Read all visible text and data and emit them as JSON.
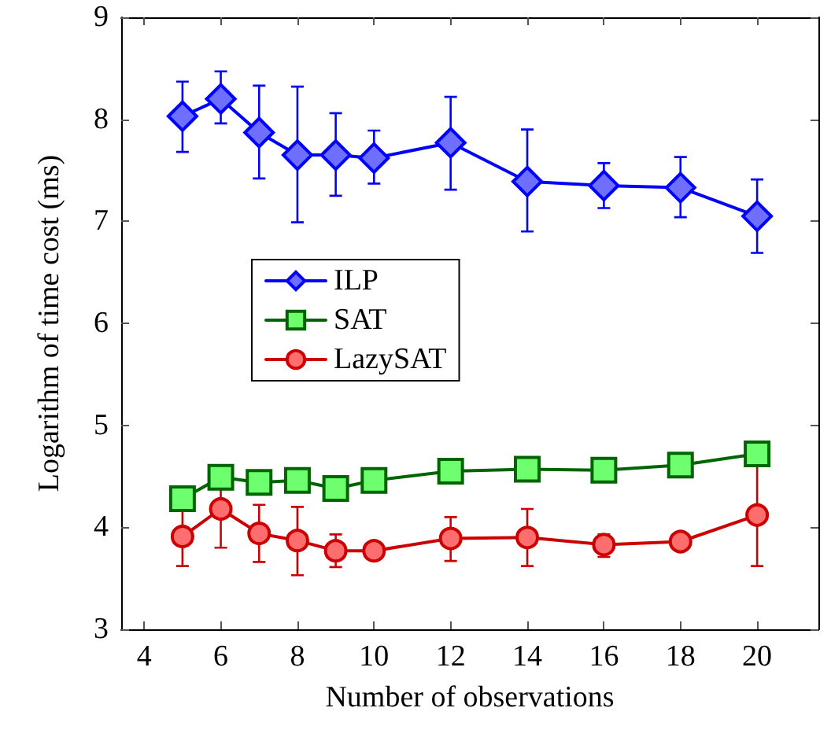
{
  "chart_data": {
    "type": "line",
    "xlabel": "Number of observations",
    "ylabel": "Logarithm of time cost (ms)",
    "x": [
      5,
      6,
      7,
      8,
      9,
      10,
      12,
      14,
      16,
      18,
      20
    ],
    "xlim": [
      3.4,
      21.6
    ],
    "xticks": [
      4,
      6,
      8,
      10,
      12,
      14,
      16,
      18,
      20
    ],
    "ylim": [
      3,
      9
    ],
    "yticks": [
      3,
      4,
      5,
      6,
      7,
      8,
      9
    ],
    "grid": false,
    "legend": "left",
    "line_style": "solid",
    "series": [
      {
        "name": "ILP",
        "color": "#0000ff",
        "marker": "diamond",
        "values": [
          8.03,
          8.2,
          7.87,
          7.65,
          7.65,
          7.62,
          7.77,
          7.39,
          7.35,
          7.33,
          7.05
        ],
        "errors": [
          [
            7.68,
            8.37
          ],
          [
            7.96,
            8.47
          ],
          [
            7.42,
            8.33
          ],
          [
            6.99,
            8.32
          ],
          [
            7.25,
            8.06
          ],
          [
            7.37,
            7.89
          ],
          [
            7.31,
            8.22
          ],
          [
            6.9,
            7.9
          ],
          [
            7.13,
            7.57
          ],
          [
            7.04,
            7.63
          ],
          [
            6.69,
            7.41
          ]
        ]
      },
      {
        "name": "SAT",
        "color": "#006400",
        "marker": "square",
        "values": [
          4.28,
          4.49,
          4.44,
          4.46,
          4.38,
          4.46,
          4.55,
          4.57,
          4.56,
          4.61,
          4.72
        ]
      },
      {
        "name": "LazySAT",
        "color": "#cc0000",
        "marker": "circle",
        "values": [
          3.91,
          4.18,
          3.94,
          3.87,
          3.77,
          3.77,
          3.89,
          3.9,
          3.83,
          3.86,
          4.12
        ],
        "errors": [
          [
            3.62,
            4.2
          ],
          [
            3.8,
            4.56
          ],
          [
            3.66,
            4.22
          ],
          [
            3.53,
            4.2
          ],
          [
            3.61,
            3.93
          ],
          null,
          [
            3.67,
            4.1
          ],
          [
            3.62,
            4.18
          ],
          [
            3.71,
            3.93
          ],
          null,
          [
            3.62,
            4.62
          ]
        ]
      }
    ]
  }
}
